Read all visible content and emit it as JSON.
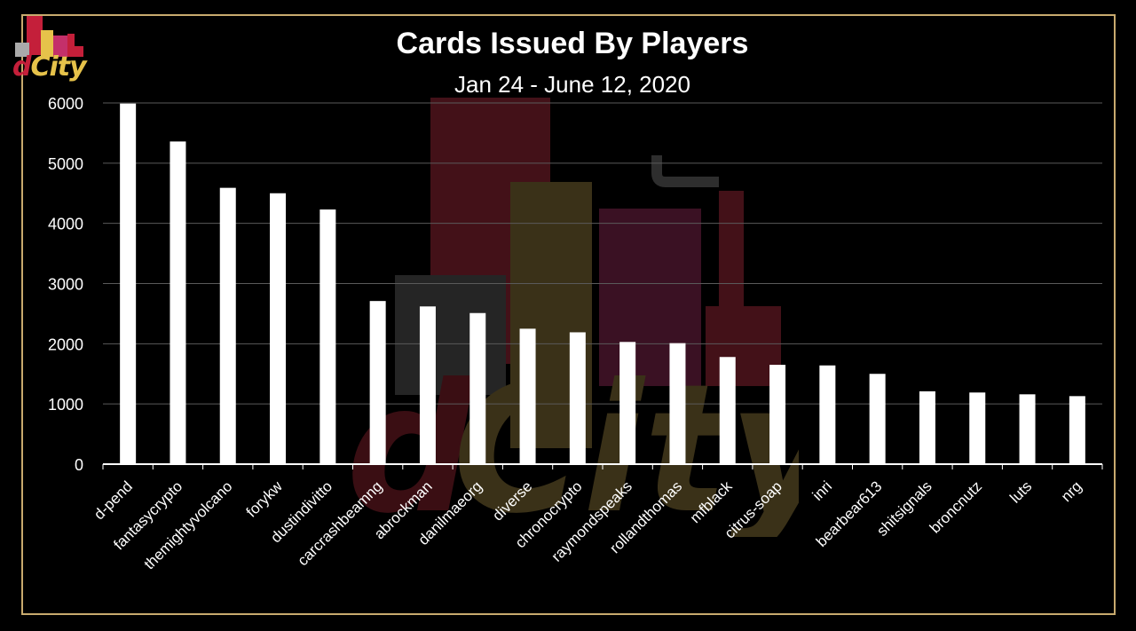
{
  "logo": {
    "d": "d",
    "city": "City"
  },
  "chart_data": {
    "type": "bar",
    "title": "Cards Issued By Players",
    "subtitle": "Jan 24 - June 12, 2020",
    "categories": [
      "d-pend",
      "fantasycrypto",
      "themightyvolcano",
      "forykw",
      "dustindivitto",
      "carcrashbeamng",
      "abrockman",
      "danilmaeorg",
      "diverse",
      "chronocrypto",
      "raymondspeaks",
      "rollandthomas",
      "mfblack",
      "citrus-soap",
      "inri",
      "bearbear613",
      "shitsignals",
      "broncnutz",
      "luts",
      "nrg"
    ],
    "values": [
      5990,
      5360,
      4590,
      4500,
      4230,
      2710,
      2620,
      2510,
      2250,
      2190,
      2030,
      2010,
      1780,
      1650,
      1640,
      1500,
      1210,
      1190,
      1160,
      1130
    ],
    "ylim": [
      0,
      6000
    ],
    "yticks": [
      0,
      1000,
      2000,
      3000,
      4000,
      5000,
      6000
    ],
    "grid": true,
    "bar_color": "#ffffff",
    "text_color": "#ffffff",
    "grid_color": "#5a5a5a"
  }
}
